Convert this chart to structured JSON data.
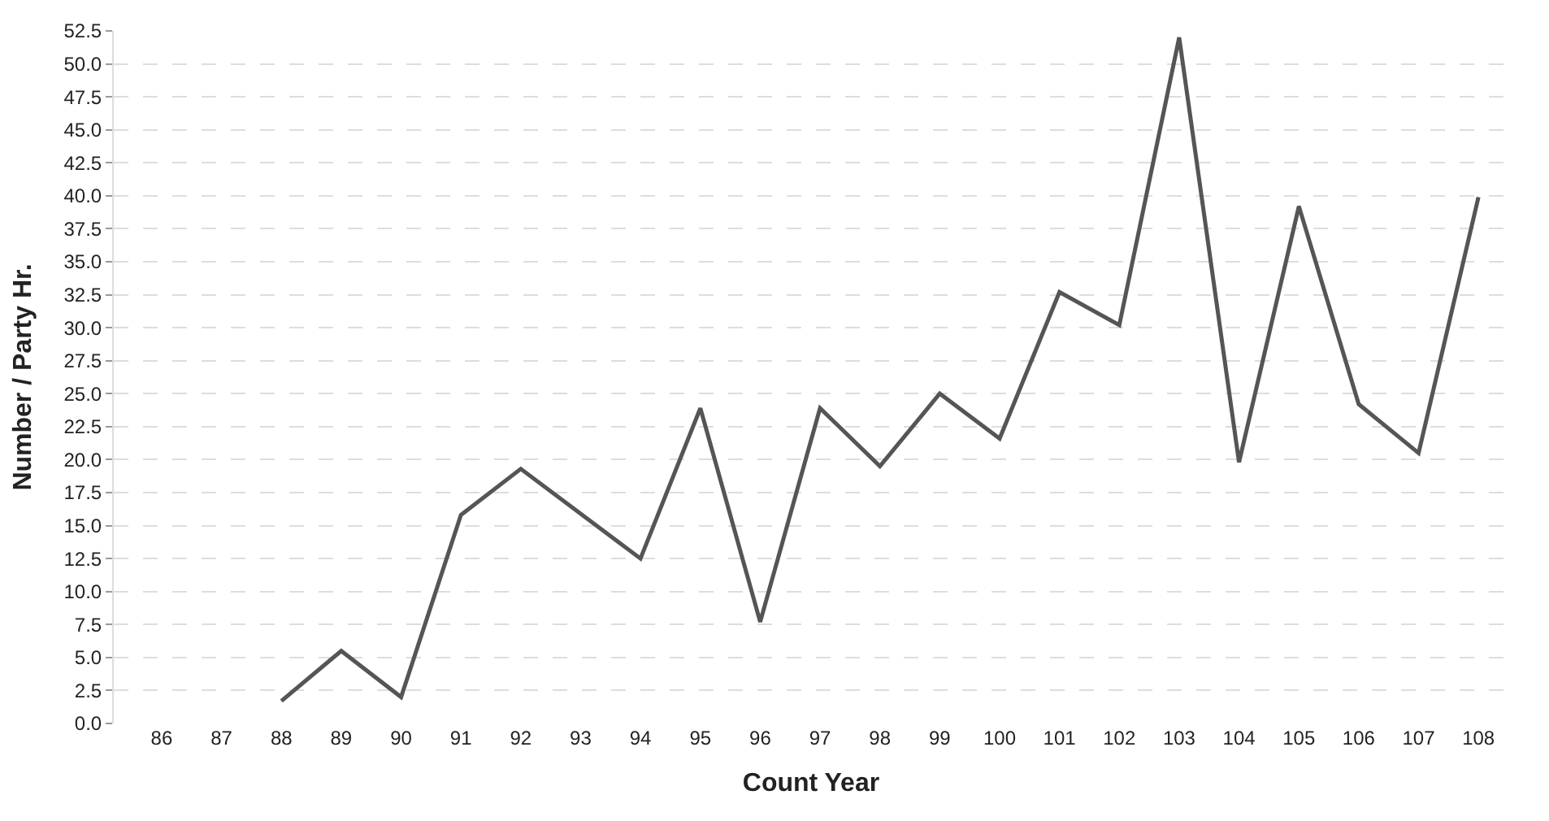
{
  "chart_data": {
    "type": "line",
    "xlabel": "Count Year",
    "ylabel": "Number / Party Hr.",
    "categories": [
      "86",
      "87",
      "88",
      "89",
      "90",
      "91",
      "92",
      "93",
      "94",
      "95",
      "96",
      "97",
      "98",
      "99",
      "100",
      "101",
      "102",
      "103",
      "104",
      "105",
      "106",
      "107",
      "108"
    ],
    "series": [
      {
        "color": "#555555",
        "values": [
          null,
          null,
          1.7,
          5.5,
          2.0,
          15.8,
          19.3,
          15.9,
          12.5,
          23.9,
          7.7,
          23.9,
          19.5,
          25.0,
          21.6,
          32.7,
          30.2,
          52.0,
          19.8,
          39.2,
          24.2,
          20.5,
          39.9
        ]
      }
    ],
    "ylim": [
      0,
      52.5
    ],
    "yticks": [
      {
        "value": 0,
        "label": "0.0"
      },
      {
        "value": 2.5,
        "label": "2.5"
      },
      {
        "value": 5,
        "label": "5.0"
      },
      {
        "value": 7.5,
        "label": "7.5"
      },
      {
        "value": 10,
        "label": "10.0"
      },
      {
        "value": 12.5,
        "label": "12.5"
      },
      {
        "value": 15,
        "label": "15.0"
      },
      {
        "value": 17.5,
        "label": "17.5"
      },
      {
        "value": 20,
        "label": "20.0"
      },
      {
        "value": 22.5,
        "label": "22.5"
      },
      {
        "value": 25,
        "label": "25.0"
      },
      {
        "value": 27.5,
        "label": "27.5"
      },
      {
        "value": 30,
        "label": "30.0"
      },
      {
        "value": 32.5,
        "label": "32.5"
      },
      {
        "value": 35,
        "label": "35.0"
      },
      {
        "value": 37.5,
        "label": "37.5"
      },
      {
        "value": 40,
        "label": "40.0"
      },
      {
        "value": 42.5,
        "label": "42.5"
      },
      {
        "value": 45,
        "label": "45.0"
      },
      {
        "value": 47.5,
        "label": "47.5"
      },
      {
        "value": 50,
        "label": "50.0"
      },
      {
        "value": 52.5,
        "label": "52.5"
      }
    ],
    "grid": "y",
    "marker": "none",
    "line_style": "solid"
  }
}
